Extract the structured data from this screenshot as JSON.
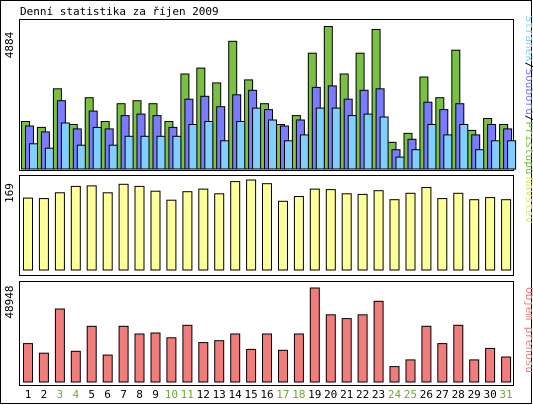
{
  "title": "Denní statistika za říjen 2009",
  "colors": {
    "border": "#000000",
    "background": "#ffffff",
    "hits": "#7ac143",
    "files": "#7b7bff",
    "pages": "#7fd0ff",
    "visits": "#ffff99",
    "volume": "#f07c7c",
    "weekend_day": "#6aaa2e",
    "weekday": "#000000"
  },
  "days": [
    "1",
    "2",
    "3",
    "4",
    "5",
    "6",
    "7",
    "8",
    "9",
    "10",
    "11",
    "12",
    "13",
    "14",
    "15",
    "16",
    "17",
    "18",
    "19",
    "20",
    "21",
    "22",
    "23",
    "24",
    "25",
    "26",
    "27",
    "28",
    "29",
    "30",
    "31"
  ],
  "weekend_days": [
    "3",
    "4",
    "10",
    "11",
    "17",
    "18",
    "24",
    "25",
    "31"
  ],
  "chart_data": [
    {
      "type": "bar",
      "name_label_parts": [
        {
          "text": "Stránek",
          "color": "#7fd0ff"
        },
        {
          "text": "/",
          "color": "#000000"
        },
        {
          "text": "Souborů",
          "color": "#7b7bff"
        },
        {
          "text": "/",
          "color": "#000000"
        },
        {
          "text": "Přístupů",
          "color": "#7ac143"
        }
      ],
      "ymax_label": "4884",
      "ymax": 4884,
      "categories": [
        "1",
        "2",
        "3",
        "4",
        "5",
        "6",
        "7",
        "8",
        "9",
        "10",
        "11",
        "12",
        "13",
        "14",
        "15",
        "16",
        "17",
        "18",
        "19",
        "20",
        "21",
        "22",
        "23",
        "24",
        "25",
        "26",
        "27",
        "28",
        "29",
        "30",
        "31"
      ],
      "series": [
        {
          "name": "Přístupů",
          "values": [
            1600,
            1400,
            2700,
            1500,
            2400,
            1600,
            2200,
            2300,
            2200,
            1600,
            3200,
            3400,
            2900,
            4300,
            3000,
            2200,
            1500,
            1800,
            3900,
            4800,
            3200,
            3900,
            4700,
            900,
            1200,
            3100,
            2400,
            4000,
            1300,
            1700,
            1500
          ]
        },
        {
          "name": "Souborů",
          "values": [
            1450,
            1250,
            2300,
            1350,
            1950,
            1350,
            1800,
            1850,
            1800,
            1400,
            2350,
            2450,
            2100,
            2500,
            2650,
            2000,
            1450,
            1650,
            2750,
            2800,
            2350,
            2650,
            2700,
            650,
            1000,
            2250,
            2000,
            2200,
            1150,
            1500,
            1350
          ]
        },
        {
          "name": "Stránek",
          "values": [
            850,
            700,
            1550,
            800,
            1400,
            800,
            1100,
            1100,
            1100,
            1100,
            1500,
            1600,
            950,
            1600,
            2050,
            1650,
            950,
            1150,
            2050,
            2050,
            1800,
            1850,
            1750,
            400,
            650,
            1500,
            1150,
            1500,
            650,
            950,
            950
          ]
        }
      ]
    },
    {
      "type": "bar",
      "name_label": "Návštěv",
      "ymax_label": "169",
      "ymax": 169,
      "categories": [
        "1",
        "2",
        "3",
        "4",
        "5",
        "6",
        "7",
        "8",
        "9",
        "10",
        "11",
        "12",
        "13",
        "14",
        "15",
        "16",
        "17",
        "18",
        "19",
        "20",
        "21",
        "22",
        "23",
        "24",
        "25",
        "26",
        "27",
        "28",
        "29",
        "30",
        "31"
      ],
      "series": [
        {
          "name": "Návštěv",
          "values": [
            135,
            134,
            145,
            157,
            158,
            145,
            161,
            157,
            148,
            131,
            147,
            152,
            143,
            166,
            169,
            162,
            129,
            138,
            152,
            151,
            143,
            142,
            149,
            132,
            144,
            155,
            134,
            144,
            132,
            136,
            132
          ]
        }
      ]
    },
    {
      "type": "bar",
      "name_label": "Objem přenosu",
      "ymax_label": "48948",
      "ymax": 48948,
      "categories": [
        "1",
        "2",
        "3",
        "4",
        "5",
        "6",
        "7",
        "8",
        "9",
        "10",
        "11",
        "12",
        "13",
        "14",
        "15",
        "16",
        "17",
        "18",
        "19",
        "20",
        "21",
        "22",
        "23",
        "24",
        "25",
        "26",
        "27",
        "28",
        "29",
        "30",
        "31"
      ],
      "series": [
        {
          "name": "Objem přenosu",
          "values": [
            20000,
            15000,
            38000,
            16000,
            29000,
            14000,
            29000,
            25000,
            25500,
            23000,
            29500,
            20500,
            21500,
            25000,
            17000,
            25000,
            16500,
            25000,
            48948,
            35000,
            33000,
            35000,
            42000,
            8000,
            11500,
            29000,
            20000,
            29500,
            11500,
            17500,
            13000
          ]
        }
      ]
    }
  ]
}
